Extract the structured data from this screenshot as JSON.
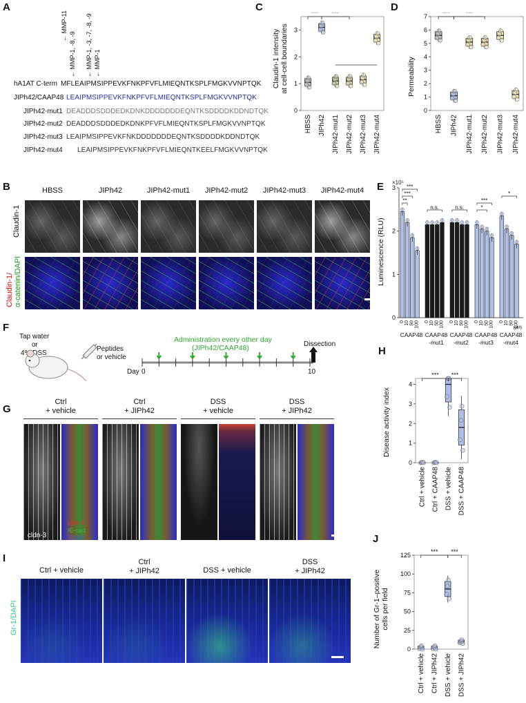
{
  "panels": {
    "A": {
      "letter": "A",
      "mmp_labels": [
        "← MMP-11",
        "← MMP-1, -8, -9",
        "← MMP-1, -3, -7, -8, -9",
        "← MMP-1"
      ],
      "rows": [
        {
          "label": "hA1AT C-term",
          "seq": "MFLEAIPMSIPPEVKFNKPFVFLMIEQNTKSPLFMGKVVNPTQK"
        },
        {
          "label": "JIPh42/CAAP48",
          "seq": "LEAIPMSIPPEVKFNKPFVFLMIEQNTKSPLFMGKVVNPTQK"
        },
        {
          "label": "JIPh42-mut1",
          "seq": "DEADDDSDDDEDKDNKDDDDDDDEQNTKSDDDDKDDNDTQK"
        },
        {
          "label": "JIPh42-mut2",
          "seq": "DEADDDSDDDEDKDNKPFVFLMIEQNTKSPLFMGKVVNPTQK"
        },
        {
          "label": "JIPh42-mut3",
          "seq": "LEAIPMSIPPEVKFNKDDDDDDDEQNTKSDDDDKDDNDTQK"
        },
        {
          "label": "JIPh42-mut4",
          "seq": "LEAIPMSIPPEVKFNKPFVFLMIEQNTKEELFMGKVVNPTQK"
        }
      ]
    },
    "B": {
      "letter": "B",
      "columns": [
        "HBSS",
        "JIPh42",
        "JIPh42-mut1",
        "JIPh42-mut2",
        "JIPh42-mut3",
        "JIPh42-mut4"
      ],
      "row_labels": [
        "Claudin-1",
        "Claudin-1/",
        "α-catenin/DAPI"
      ]
    },
    "C": {
      "letter": "C",
      "ylabel_line1": "Claudin-1 intensity",
      "ylabel_line2": "at cell-cell boundaries",
      "sig": [
        "***",
        "***"
      ]
    },
    "D": {
      "letter": "D",
      "ylabel": "Permeability",
      "sig": [
        "***",
        "***"
      ]
    },
    "E": {
      "letter": "E",
      "ylabel": "Luminescence (RLU)",
      "exponent": "×10⁵",
      "unit": "(μM)",
      "groups": [
        "CAAP48",
        "CAAP48\n-mut1",
        "CAAP48\n-mut2",
        "CAAP48\n-mut3",
        "CAAP48\n-mut4"
      ],
      "sig": [
        "***",
        "***",
        "**",
        "n.s.",
        "n.s.",
        "***",
        "*",
        "*"
      ]
    },
    "F": {
      "letter": "F",
      "tap": "Tap water",
      "or1": "or",
      "dss": "4% DSS",
      "peptides": "Peptides",
      "or_vehicle": "or vehicle",
      "admin": "Administration every other day",
      "admin2": "(JIPh42/CAAP48)",
      "dissection": "Dissection",
      "day": "Day",
      "day0": "0",
      "day10": "10"
    },
    "G": {
      "letter": "G",
      "columns": [
        "Ctrl\n+ vehicle",
        "Ctrl\n+ JIPh42",
        "DSS\n+ vehicle",
        "DSS\n+ JIPh42"
      ],
      "legend_cldn3": "cldn-3",
      "legend_ecad": "/E-cad",
      "legend_dapi": "/DAPI",
      "gray_label": "cldn-3"
    },
    "H": {
      "letter": "H",
      "ylabel": "Disease activity index",
      "sig": [
        "***",
        "***"
      ]
    },
    "I": {
      "letter": "I",
      "columns": [
        "Ctrl + vehicle",
        "Ctrl\n+ JIPh42",
        "DSS + vehicle",
        "DSS\n+ JIPh42"
      ],
      "row_label": "Gr-1/DAPI"
    },
    "J": {
      "letter": "J",
      "ylabel_line1": "Number of Gr-1–positive",
      "ylabel_line2": "cells per field",
      "sig": [
        "***",
        "***"
      ]
    }
  },
  "chart_data": [
    {
      "type": "box",
      "panel": "C",
      "categories": [
        "HBSS",
        "JIPh42",
        "JIPh42-mut1",
        "JIPh42-mut2",
        "JIPh42-mut3",
        "JIPh42-mut4"
      ],
      "values": [
        1.05,
        3.1,
        1.1,
        1.1,
        1.15,
        2.7
      ],
      "ylim": [
        0,
        3.5
      ],
      "yticks": [
        0,
        1,
        2,
        3
      ],
      "colors": [
        "#bfbfbf",
        "#aebfe8",
        "#c8c8a0",
        "#d8d2a8",
        "#e8dfb8",
        "#f3e6b4"
      ]
    },
    {
      "type": "box",
      "panel": "D",
      "categories": [
        "HBSS",
        "JIPh42",
        "JIPh42-mut1",
        "JIPh42-mut2",
        "JIPh42-mut3",
        "JIPh42-mut4"
      ],
      "values": [
        5.6,
        1.1,
        5.1,
        5.1,
        5.6,
        1.2
      ],
      "ylim": [
        0,
        7
      ],
      "yticks": [
        0,
        1,
        2,
        3,
        4,
        5,
        6,
        7
      ],
      "colors": [
        "#bfbfbf",
        "#aebfe8",
        "#e6dcb0",
        "#e6dcb0",
        "#f0e4b8",
        "#f3e6b4"
      ]
    },
    {
      "type": "bar",
      "panel": "E",
      "x_ticks": [
        "0",
        "10",
        "50",
        "100"
      ],
      "series": [
        {
          "name": "CAAP48",
          "values": [
            2.45,
            2.2,
            1.85,
            1.55
          ]
        },
        {
          "name": "CAAP48-mut1",
          "values": [
            2.15,
            2.15,
            2.15,
            2.2
          ]
        },
        {
          "name": "CAAP48-mut2",
          "values": [
            2.2,
            2.2,
            2.15,
            2.15
          ]
        },
        {
          "name": "CAAP48-mut3",
          "values": [
            2.15,
            2.05,
            2.0,
            1.85
          ]
        },
        {
          "name": "CAAP48-mut4",
          "values": [
            2.35,
            2.05,
            1.9,
            1.7
          ]
        }
      ],
      "ylim": [
        0,
        3
      ],
      "yticks": [
        0,
        1,
        2,
        3
      ]
    },
    {
      "type": "box",
      "panel": "H",
      "categories": [
        "Ctrl + vehicle",
        "Ctrl + CAAP48",
        "DSS + vehicle",
        "DSS + CAAP48"
      ],
      "values": [
        0,
        0,
        4,
        1.8
      ],
      "ylim": [
        0,
        4.3
      ],
      "yticks": [
        0,
        1,
        2,
        3,
        4
      ]
    },
    {
      "type": "box",
      "panel": "J",
      "categories": [
        "Ctrl + vehicle",
        "Ctrl + JIPh42",
        "DSS + vehicle",
        "DSS + JIPh42"
      ],
      "values": [
        2,
        2,
        80,
        10
      ],
      "ylim": [
        0,
        125
      ],
      "yticks": [
        0,
        25,
        50,
        75,
        100,
        125
      ]
    }
  ]
}
